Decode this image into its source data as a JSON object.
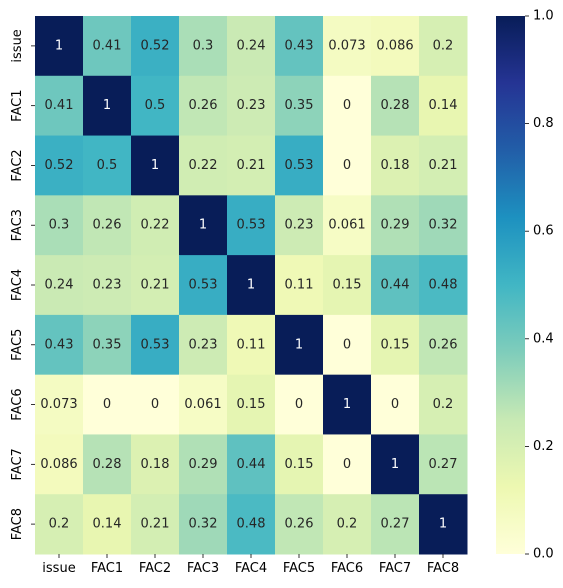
{
  "chart_data": {
    "type": "heatmap",
    "title": "",
    "xlabel": "",
    "ylabel": "",
    "x_labels": [
      "issue",
      "FAC1",
      "FAC2",
      "FAC3",
      "FAC4",
      "FAC5",
      "FAC6",
      "FAC7",
      "FAC8"
    ],
    "y_labels": [
      "issue",
      "FAC1",
      "FAC2",
      "FAC3",
      "FAC4",
      "FAC5",
      "FAC6",
      "FAC7",
      "FAC8"
    ],
    "values": [
      [
        1,
        0.41,
        0.52,
        0.3,
        0.24,
        0.43,
        0.073,
        0.086,
        0.2
      ],
      [
        0.41,
        1,
        0.5,
        0.26,
        0.23,
        0.35,
        0,
        0.28,
        0.14
      ],
      [
        0.52,
        0.5,
        1,
        0.22,
        0.21,
        0.53,
        0,
        0.18,
        0.21
      ],
      [
        0.3,
        0.26,
        0.22,
        1,
        0.53,
        0.23,
        0.061,
        0.29,
        0.32
      ],
      [
        0.24,
        0.23,
        0.21,
        0.53,
        1,
        0.11,
        0.15,
        0.44,
        0.48
      ],
      [
        0.43,
        0.35,
        0.53,
        0.23,
        0.11,
        1,
        0,
        0.15,
        0.26
      ],
      [
        0.073,
        0,
        0,
        0.061,
        0.15,
        0,
        1,
        0,
        0.2
      ],
      [
        0.086,
        0.28,
        0.18,
        0.29,
        0.44,
        0.15,
        0,
        1,
        0.27
      ],
      [
        0.2,
        0.14,
        0.21,
        0.32,
        0.48,
        0.26,
        0.2,
        0.27,
        1
      ]
    ],
    "annotation_labels": [
      [
        "1",
        "0.41",
        "0.52",
        "0.3",
        "0.24",
        "0.43",
        "0.073",
        "0.086",
        "0.2"
      ],
      [
        "0.41",
        "1",
        "0.5",
        "0.26",
        "0.23",
        "0.35",
        "0",
        "0.28",
        "0.14"
      ],
      [
        "0.52",
        "0.5",
        "1",
        "0.22",
        "0.21",
        "0.53",
        "0",
        "0.18",
        "0.21"
      ],
      [
        "0.3",
        "0.26",
        "0.22",
        "1",
        "0.53",
        "0.23",
        "0.061",
        "0.29",
        "0.32"
      ],
      [
        "0.24",
        "0.23",
        "0.21",
        "0.53",
        "1",
        "0.11",
        "0.15",
        "0.44",
        "0.48"
      ],
      [
        "0.43",
        "0.35",
        "0.53",
        "0.23",
        "0.11",
        "1",
        "0",
        "0.15",
        "0.26"
      ],
      [
        "0.073",
        "0",
        "0",
        "0.061",
        "0.15",
        "0",
        "1",
        "0",
        "0.2"
      ],
      [
        "0.086",
        "0.28",
        "0.18",
        "0.29",
        "0.44",
        "0.15",
        "0",
        "1",
        "0.27"
      ],
      [
        "0.2",
        "0.14",
        "0.21",
        "0.32",
        "0.48",
        "0.26",
        "0.2",
        "0.27",
        "1"
      ]
    ],
    "colormap": "YlGnBu",
    "colormap_stops": [
      "#ffffd9",
      "#edf8b1",
      "#c7e9b4",
      "#7fcdbb",
      "#41b6c4",
      "#1d91c0",
      "#225ea8",
      "#253494",
      "#081d58"
    ],
    "colorbar_range": [
      0.0,
      1.0
    ],
    "colorbar_ticks": [
      "0.0",
      "0.2",
      "0.4",
      "0.6",
      "0.8",
      "1.0"
    ],
    "grid": false,
    "legend": "colorbar-right"
  }
}
